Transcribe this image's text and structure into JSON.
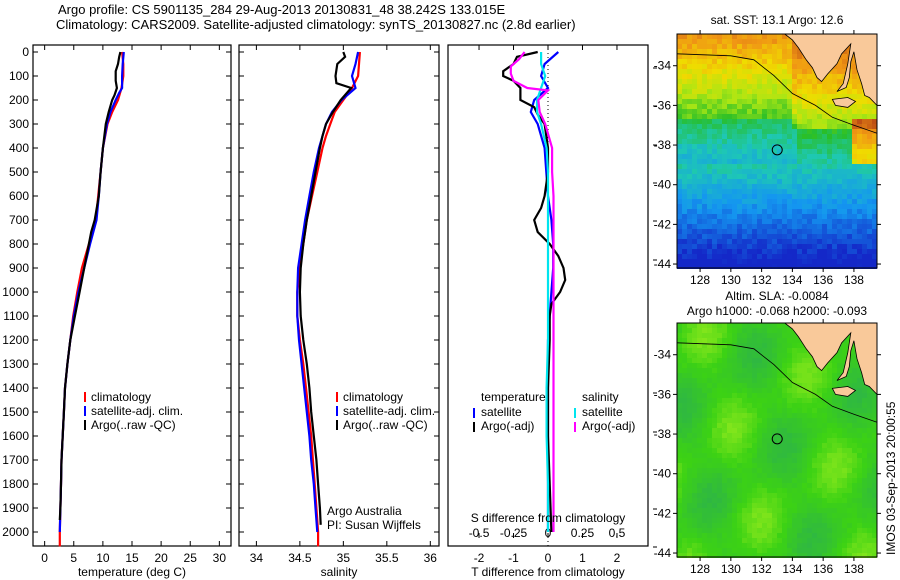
{
  "header": {
    "line1": "Argo profile: CS 5901135_284 29-Aug-2013 20130831_48 38.242S 133.015E",
    "line2": "Climatology: CARS2009. Satellite-adjusted climatology: synTS_20130827.nc (2.8d earlier)"
  },
  "colors": {
    "climatology": "#ff0000",
    "satellite": "#0000ff",
    "argo": "#000000",
    "sal_satellite": "#00e5ee",
    "sal_argo": "#ff00ff",
    "land": "#f9c99a"
  },
  "chart_data": [
    {
      "type": "line",
      "id": "temperature",
      "xlabel": "temperature (deg C)",
      "ylabel": "",
      "xlim": [
        -2,
        32
      ],
      "ylim": [
        2060,
        0
      ],
      "xticks": [
        0,
        5,
        10,
        15,
        20,
        25,
        30
      ],
      "yticks": [
        0,
        100,
        200,
        300,
        400,
        500,
        600,
        700,
        800,
        900,
        1000,
        1100,
        1200,
        1300,
        1400,
        1500,
        1600,
        1700,
        1800,
        1900,
        2000
      ],
      "legend": [
        "climatology",
        "satellite-adj. clim.",
        "Argo(..raw -QC)"
      ],
      "series": [
        {
          "name": "climatology",
          "color": "climatology",
          "depth": [
            0,
            50,
            100,
            150,
            200,
            250,
            300,
            400,
            500,
            600,
            700,
            800,
            900,
            1000,
            1100,
            1200,
            1300,
            1400,
            1500,
            1600,
            1700,
            1800,
            1900,
            2000,
            2060
          ],
          "values": [
            13.3,
            13.5,
            13.5,
            13.2,
            12.6,
            11.6,
            10.8,
            10.0,
            9.6,
            9.2,
            8.8,
            7.6,
            6.4,
            5.6,
            4.9,
            4.4,
            3.9,
            3.5,
            3.3,
            3.1,
            2.9,
            2.8,
            2.7,
            2.6,
            2.6
          ]
        },
        {
          "name": "satellite-adj. clim.",
          "color": "satellite",
          "depth": [
            0,
            50,
            100,
            150,
            170,
            200,
            250,
            300,
            400,
            500,
            600,
            700,
            800,
            900,
            1000,
            1100,
            1200,
            1300,
            1400,
            1500,
            1600,
            1700,
            1800,
            1900,
            2000
          ],
          "values": [
            13.6,
            13.4,
            13.3,
            13.3,
            12.8,
            12.2,
            11.3,
            10.7,
            10.0,
            9.6,
            9.3,
            8.9,
            7.8,
            6.8,
            5.8,
            5.0,
            4.4,
            3.9,
            3.5,
            3.3,
            3.1,
            2.9,
            2.8,
            2.7,
            2.6
          ]
        },
        {
          "name": "Argo(..raw -QC)",
          "color": "argo",
          "depth": [
            0,
            20,
            50,
            80,
            120,
            150,
            180,
            200,
            250,
            300,
            400,
            500,
            600,
            700,
            750,
            800,
            900,
            1000,
            1100,
            1200,
            1300,
            1400,
            1500,
            1600,
            1700,
            1800,
            1900,
            1950
          ],
          "values": [
            13.0,
            12.8,
            12.6,
            12.2,
            12.2,
            12.4,
            12.0,
            11.6,
            11.0,
            10.5,
            10.0,
            9.6,
            9.3,
            8.6,
            8.0,
            7.6,
            6.8,
            6.0,
            5.2,
            4.4,
            3.9,
            3.5,
            3.3,
            3.1,
            2.9,
            2.8,
            2.7,
            2.6
          ]
        }
      ]
    },
    {
      "type": "line",
      "id": "salinity",
      "xlabel": "salinity",
      "xlim": [
        33.8,
        36.1
      ],
      "ylim": [
        2060,
        0
      ],
      "xticks": [
        34,
        34.5,
        35,
        35.5,
        36
      ],
      "legend": [
        "climatology",
        "satellite-adj. clim.",
        "Argo(..raw -QC)"
      ],
      "annotation": [
        "Argo Australia",
        "PI: Susan Wijffels"
      ],
      "series": [
        {
          "name": "climatology",
          "color": "climatology",
          "depth": [
            0,
            50,
            100,
            150,
            200,
            250,
            300,
            350,
            400,
            500,
            600,
            700,
            800,
            900,
            1000,
            1100,
            1200,
            1300,
            1400,
            1500,
            1600,
            1700,
            1800,
            1900,
            2000,
            2060
          ],
          "values": [
            35.19,
            35.18,
            35.17,
            35.1,
            35.0,
            34.9,
            34.85,
            34.8,
            34.76,
            34.7,
            34.64,
            34.58,
            34.54,
            34.5,
            34.47,
            34.47,
            34.5,
            34.54,
            34.57,
            34.6,
            34.63,
            34.65,
            34.67,
            34.69,
            34.71,
            34.71
          ]
        },
        {
          "name": "satellite-adj. clim.",
          "color": "satellite",
          "depth": [
            0,
            50,
            100,
            150,
            200,
            250,
            300,
            350,
            400,
            500,
            600,
            700,
            800,
            900,
            1000,
            1100,
            1200,
            1300,
            1400,
            1500,
            1600,
            1700,
            1800,
            1900,
            2000
          ],
          "values": [
            35.17,
            35.14,
            35.1,
            35.14,
            34.98,
            34.87,
            34.8,
            34.76,
            34.72,
            34.66,
            34.61,
            34.56,
            34.52,
            34.48,
            34.47,
            34.47,
            34.49,
            34.52,
            34.55,
            34.58,
            34.61,
            34.63,
            34.66,
            34.68,
            34.7
          ]
        },
        {
          "name": "Argo(..raw -QC)",
          "color": "argo",
          "depth": [
            0,
            20,
            50,
            100,
            130,
            150,
            200,
            250,
            300,
            350,
            400,
            500,
            600,
            700,
            800,
            900,
            1000,
            1100,
            1200,
            1300,
            1400,
            1500,
            1600,
            1700,
            1800,
            1900,
            1970
          ],
          "values": [
            35.0,
            35.02,
            34.93,
            34.91,
            34.92,
            35.09,
            34.97,
            34.88,
            34.8,
            34.76,
            34.73,
            34.68,
            34.63,
            34.58,
            34.54,
            34.51,
            34.5,
            34.51,
            34.54,
            34.58,
            34.61,
            34.63,
            34.66,
            34.69,
            34.71,
            34.73,
            34.74
          ]
        }
      ]
    },
    {
      "type": "line",
      "id": "differences",
      "xlabel": "T difference from climatology",
      "xlabel_top": "S difference from climatology",
      "xlim": [
        -2.9,
        2.9
      ],
      "ylim": [
        2060,
        0
      ],
      "xticks": [
        -2,
        -1,
        0,
        1,
        2
      ],
      "xticks_s": [
        -0.5,
        -0.25,
        0,
        0.25,
        0.5
      ],
      "xticks_s_labels": [
        "-0.5",
        "-0.25",
        "0",
        "0.25",
        "0.5"
      ],
      "legend_left": {
        "heading": "temperature",
        "items": [
          "satellite",
          "Argo(-adj)"
        ]
      },
      "legend_right": {
        "heading": "salinity",
        "items": [
          "satellite",
          "Argo(-adj)"
        ]
      },
      "series": [
        {
          "name": "T satellite",
          "color": "satellite",
          "depth": [
            0,
            50,
            100,
            150,
            200,
            250,
            300,
            400,
            500,
            600,
            700,
            800,
            900,
            1000,
            1100,
            1200,
            1400,
            1600,
            1800,
            2000
          ],
          "values": [
            0.3,
            -0.1,
            -0.2,
            0.0,
            -0.4,
            -0.5,
            -0.3,
            -0.1,
            -0.05,
            0.0,
            0.1,
            0.15,
            0.15,
            0.1,
            0.05,
            0.0,
            0.0,
            0.0,
            0.0,
            0.0
          ]
        },
        {
          "name": "T Argo(-adj)",
          "color": "argo",
          "depth": [
            0,
            20,
            50,
            80,
            100,
            120,
            150,
            200,
            230,
            260,
            300,
            400,
            500,
            600,
            650,
            700,
            750,
            800,
            850,
            900,
            950,
            1000,
            1050,
            1100,
            1200,
            1400,
            1600,
            1800,
            2000
          ],
          "values": [
            -0.3,
            -0.9,
            -1.0,
            -1.3,
            -1.3,
            -1.0,
            -0.8,
            -0.8,
            -0.4,
            -0.3,
            -0.1,
            0.0,
            0.0,
            -0.1,
            -0.2,
            -0.4,
            -0.3,
            0.05,
            0.3,
            0.45,
            0.5,
            0.35,
            0.1,
            0.05,
            0.05,
            0.0,
            0.0,
            0.05,
            0.1
          ]
        },
        {
          "name": "S satellite",
          "color": "sal_satellite",
          "depth": [
            0,
            50,
            100,
            150,
            200,
            250,
            300,
            400,
            500,
            600,
            800,
            1000,
            1200,
            1400,
            1600,
            1800,
            2000
          ],
          "values": [
            -0.05,
            -0.05,
            -0.02,
            -0.05,
            -0.08,
            -0.08,
            -0.05,
            -0.01,
            0.0,
            0.0,
            0.0,
            0.0,
            0.0,
            -0.01,
            -0.01,
            0.0,
            0.0
          ]
        },
        {
          "name": "S Argo(-adj)",
          "color": "sal_argo",
          "depth": [
            0,
            30,
            60,
            90,
            120,
            150,
            160,
            200,
            250,
            300,
            400,
            500,
            600,
            800,
            1000,
            1200,
            1400,
            1600,
            1800,
            2000
          ],
          "values": [
            -0.17,
            -0.21,
            -0.27,
            -0.27,
            -0.25,
            -0.15,
            0.0,
            -0.07,
            -0.06,
            -0.02,
            0.03,
            0.03,
            0.04,
            0.04,
            0.04,
            0.04,
            0.04,
            0.04,
            0.04,
            0.04
          ]
        }
      ]
    },
    {
      "type": "heatmap",
      "id": "sst-map",
      "title": "sat. SST: 13.1  Argo: 12.6",
      "xlim": [
        126.5,
        139.5
      ],
      "ylim": [
        -44.2,
        -32.4
      ],
      "xticks": [
        128,
        130,
        132,
        134,
        136,
        138
      ],
      "yticks": [
        -34,
        -36,
        -38,
        -40,
        -42,
        -44
      ],
      "marker": {
        "lon": 133.015,
        "lat": -38.242
      }
    },
    {
      "type": "heatmap",
      "id": "sla-map",
      "title": "Altim. SLA: -0.0084",
      "subtitle": "Argo h1000: -0.068  h2000: -0.093",
      "xlim": [
        126.5,
        139.5
      ],
      "ylim": [
        -44.2,
        -32.4
      ],
      "xticks": [
        128,
        130,
        132,
        134,
        136,
        138
      ],
      "yticks": [
        -34,
        -36,
        -38,
        -40,
        -42,
        -44
      ],
      "marker": {
        "lon": 133.015,
        "lat": -38.242
      }
    }
  ],
  "footer": {
    "timestamp": "IMOS 03-Sep-2013 20:00:55"
  }
}
